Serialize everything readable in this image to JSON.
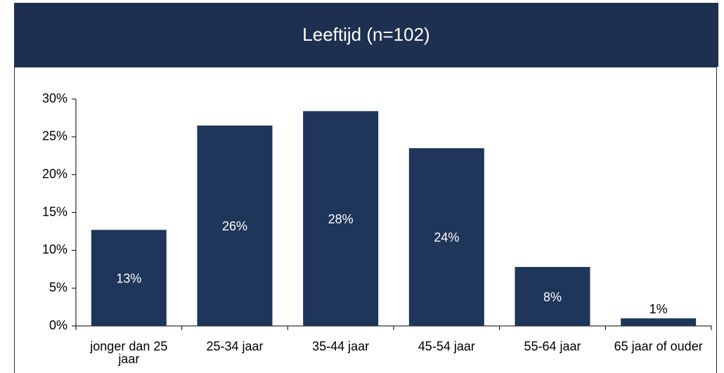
{
  "chart_data": {
    "type": "bar",
    "title": "Leeftijd (n=102)",
    "categories": [
      "jonger dan 25 jaar",
      "25-34 jaar",
      "35-44 jaar",
      "45-54 jaar",
      "55-64 jaar",
      "65 jaar of ouder"
    ],
    "values": [
      12.7,
      26.5,
      28.4,
      23.5,
      7.8,
      1.0
    ],
    "value_labels": [
      "13%",
      "26%",
      "28%",
      "24%",
      "8%",
      "1%"
    ],
    "color": "#1f3559",
    "ylim": [
      0,
      30
    ],
    "yticks": [
      {
        "value": 0,
        "label": "0%"
      },
      {
        "value": 5,
        "label": "5%"
      },
      {
        "value": 10,
        "label": "10%"
      },
      {
        "value": 15,
        "label": "15%"
      },
      {
        "value": 20,
        "label": "20%"
      },
      {
        "value": 25,
        "label": "25%"
      },
      {
        "value": 30,
        "label": "30%"
      }
    ],
    "grid": false
  }
}
